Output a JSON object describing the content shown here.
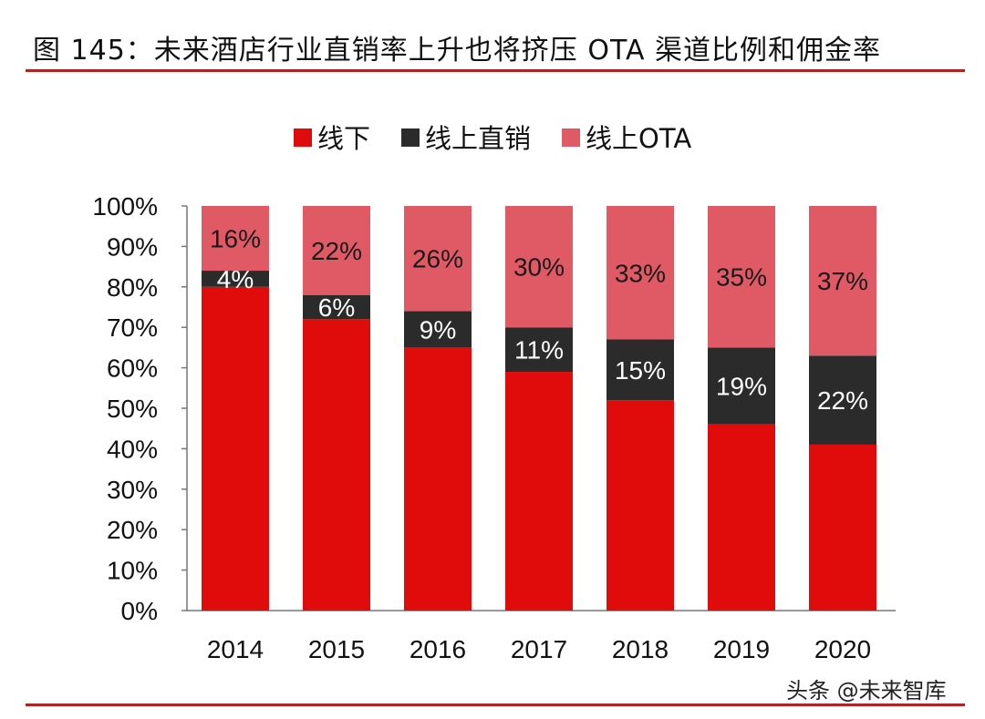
{
  "title": "图 145：未来酒店行业直销率上升也将挤压 OTA 渠道比例和佣金率",
  "watermark": "头条 @未来智库",
  "chart_data": {
    "type": "bar",
    "stacked": true,
    "title": "",
    "xlabel": "",
    "ylabel": "",
    "categories": [
      "2014",
      "2015",
      "2016",
      "2017",
      "2018",
      "2019",
      "2020"
    ],
    "ylim": [
      0,
      100
    ],
    "yticks": [
      "0%",
      "10%",
      "20%",
      "30%",
      "40%",
      "50%",
      "60%",
      "70%",
      "80%",
      "90%",
      "100%"
    ],
    "grid": false,
    "legend_position": "top",
    "series": [
      {
        "name": "线下",
        "color": "#e00b0b",
        "values": [
          80,
          72,
          65,
          59,
          52,
          46,
          41
        ],
        "labels": [],
        "label_color": "#ffffff"
      },
      {
        "name": "线上直销",
        "color": "#2b2b2b",
        "values": [
          4,
          6,
          9,
          11,
          15,
          19,
          22
        ],
        "labels": [
          "4%",
          "6%",
          "9%",
          "11%",
          "15%",
          "19%",
          "22%"
        ],
        "label_color": "#ffffff"
      },
      {
        "name": "线上OTA",
        "color": "#e05a66",
        "values": [
          16,
          22,
          26,
          30,
          33,
          35,
          37
        ],
        "labels": [
          "16%",
          "22%",
          "26%",
          "30%",
          "33%",
          "35%",
          "37%"
        ],
        "label_color": "#1a1a1a"
      }
    ]
  }
}
